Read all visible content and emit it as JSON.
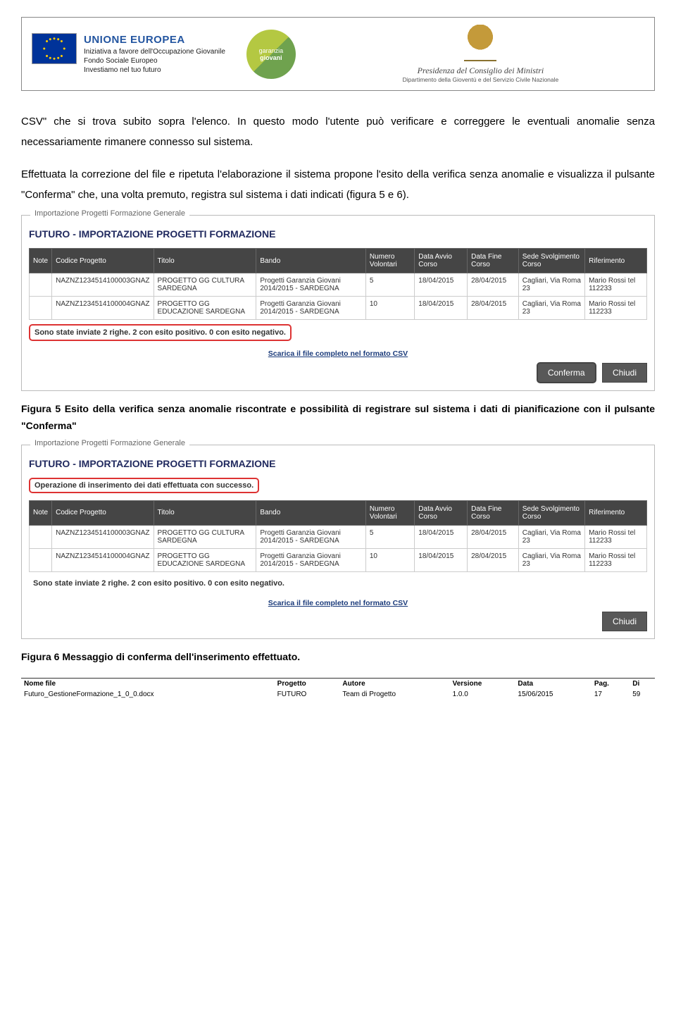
{
  "header": {
    "eu_title": "UNIONE EUROPEA",
    "eu_line1": "Iniziativa a favore dell'Occupazione Giovanile",
    "eu_line2": "Fondo Sociale Europeo",
    "eu_line3": "Investiamo nel tuo futuro",
    "garanzia_top": "garanzia",
    "garanzia_bottom": "giovani",
    "presidency_title": "Presidenza del Consiglio dei Ministri",
    "presidency_sub": "Dipartimento della Gioventù e del Servizio Civile Nazionale"
  },
  "para1": "CSV\" che si trova subito sopra l'elenco. In questo modo l'utente può verificare e correggere le eventuali anomalie senza necessariamente rimanere connesso sul sistema.",
  "para2": "Effettuata la correzione del file e ripetuta l'elaborazione il sistema propone l'esito della verifica senza anomalie e visualizza il pulsante \"Conferma\" che, una volta premuto, registra sul sistema i dati indicati (figura 5 e 6).",
  "figure_common": {
    "legend": "Importazione Progetti Formazione Generale",
    "section_title": "FUTURO - IMPORTAZIONE PROGETTI FORMAZIONE",
    "columns": [
      "Note",
      "Codice Progetto",
      "Titolo",
      "Bando",
      "Numero Volontari",
      "Data Avvio Corso",
      "Data Fine Corso",
      "Sede Svolgimento Corso",
      "Riferimento"
    ],
    "rows": [
      [
        "",
        "NAZNZ1234514100003GNAZ",
        "PROGETTO GG CULTURA SARDEGNA",
        "Progetti Garanzia Giovani 2014/2015 - SARDEGNA",
        "5",
        "18/04/2015",
        "28/04/2015",
        "Cagliari, Via Roma 23",
        "Mario Rossi tel 112233"
      ],
      [
        "",
        "NAZNZ1234514100004GNAZ",
        "PROGETTO GG EDUCAZIONE SARDEGNA",
        "Progetti Garanzia Giovani 2014/2015 - SARDEGNA",
        "10",
        "18/04/2015",
        "28/04/2015",
        "Cagliari, Via Roma 23",
        "Mario Rossi tel 112233"
      ]
    ],
    "status_line": "Sono state inviate 2 righe. 2 con esito positivo. 0 con esito negativo.",
    "csv_link": "Scarica il file completo nel formato CSV"
  },
  "figure5": {
    "btn_conferma": "Conferma",
    "btn_chiudi": "Chiudi",
    "caption": "Figura 5 Esito della verifica senza anomalie riscontrate e possibilità di registrare sul sistema i dati di pianificazione con il pulsante \"Conferma\""
  },
  "figure6": {
    "success_msg": "Operazione di inserimento dei dati effettuata con successo.",
    "btn_chiudi": "Chiudi",
    "caption": "Figura 6 Messaggio di conferma dell'inserimento effettuato."
  },
  "footer": {
    "headers": [
      "Nome file",
      "Progetto",
      "Autore",
      "Versione",
      "Data",
      "Pag.",
      "Di"
    ],
    "values": {
      "nome_file": "Futuro_GestioneFormazione_1_0_0.docx",
      "progetto": "FUTURO",
      "autore": "Team di Progetto",
      "versione": "1.0.0",
      "data": "15/06/2015",
      "pag": "17",
      "di": "59"
    }
  },
  "colors": {
    "header_dark": "#454545",
    "btn_bg": "#585858",
    "brand_blue": "#212a5f",
    "red_highlight": "#d33",
    "eu_blue": "#003399"
  }
}
